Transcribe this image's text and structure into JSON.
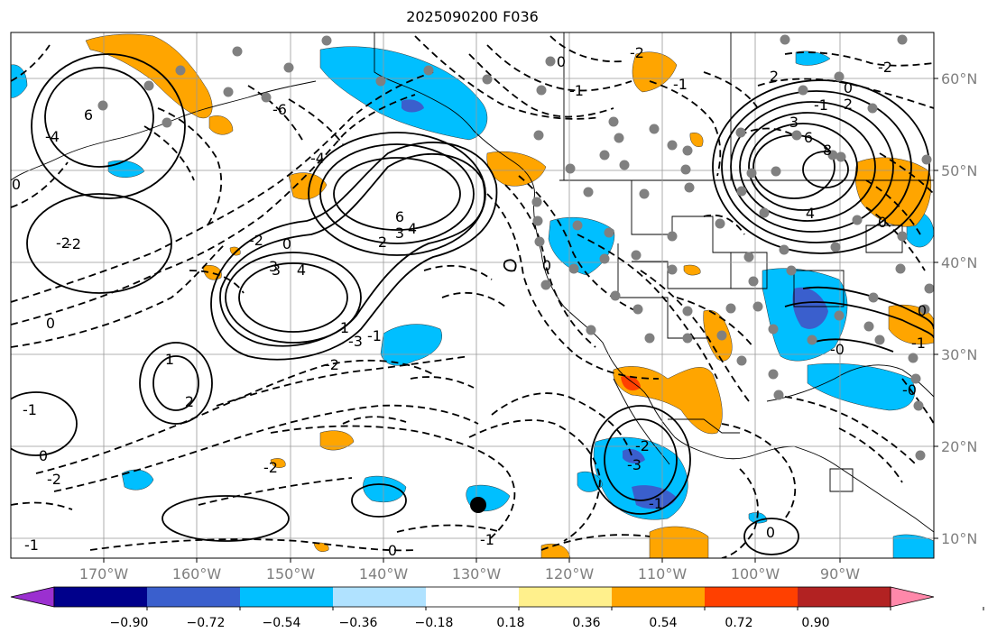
{
  "title": "2025090200 F036",
  "longitude_labels": [
    "170°W",
    "160°W",
    "150°W",
    "140°W",
    "130°W",
    "120°W",
    "110°W",
    "100°W",
    "90°W"
  ],
  "latitude_labels": [
    "60°N",
    "50°N",
    "40°N",
    "30°N",
    "20°N",
    "10°N"
  ],
  "colorbar": {
    "tick_labels": [
      "−0.90",
      "−0.72",
      "−0.54",
      "−0.36",
      "−0.18",
      "0.18",
      "0.36",
      "0.54",
      "0.72",
      "0.90"
    ],
    "colors": [
      "#9b30d0",
      "#00008b",
      "#3a5fcd",
      "#00bfff",
      "#b0e2ff",
      "#ffffff",
      "#fff08c",
      "#ffa500",
      "#ff4000",
      "#b22222",
      "#ff88aa"
    ]
  },
  "contour_labels": [
    {
      "text": "0"
    },
    {
      "text": "-1"
    },
    {
      "text": "0"
    },
    {
      "text": "-2"
    },
    {
      "text": "-1"
    },
    {
      "text": "6"
    },
    {
      "text": "-4"
    },
    {
      "text": "-2"
    },
    {
      "text": "1"
    },
    {
      "text": "3"
    },
    {
      "text": "-6"
    },
    {
      "text": "-4"
    },
    {
      "text": "6"
    },
    {
      "text": "3"
    },
    {
      "text": "4"
    },
    {
      "text": "2"
    },
    {
      "text": "-2"
    },
    {
      "text": "0"
    },
    {
      "text": "3"
    },
    {
      "text": "4"
    },
    {
      "text": "-1"
    },
    {
      "text": "-2"
    },
    {
      "text": "1"
    },
    {
      "text": "2"
    },
    {
      "text": "0"
    },
    {
      "text": "-2"
    },
    {
      "text": "-3"
    },
    {
      "text": "-2"
    },
    {
      "text": "-1"
    },
    {
      "text": "0"
    },
    {
      "text": "-1"
    },
    {
      "text": "0"
    },
    {
      "text": "-1"
    },
    {
      "text": "-2"
    },
    {
      "text": "0"
    },
    {
      "text": "3"
    },
    {
      "text": "8"
    },
    {
      "text": "6"
    },
    {
      "text": "4"
    },
    {
      "text": "2"
    },
    {
      "text": "0"
    },
    {
      "text": "-1"
    },
    {
      "text": "0"
    },
    {
      "text": "-2"
    },
    {
      "text": "2"
    },
    {
      "text": "-0"
    },
    {
      "text": "0"
    },
    {
      "text": "-1"
    },
    {
      "text": "-0"
    },
    {
      "text": "0"
    },
    {
      "text": "-2"
    },
    {
      "text": "-3"
    },
    {
      "text": "-1"
    }
  ],
  "colors": {
    "land_outline": "#000000",
    "grid": "#999999",
    "marker_gray": "#808080",
    "marker_black": "#000000"
  }
}
